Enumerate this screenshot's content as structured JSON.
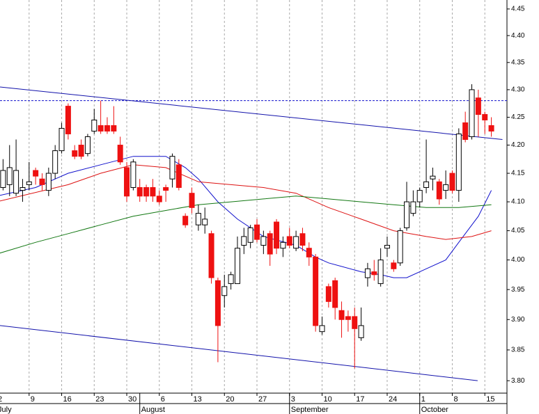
{
  "chart_data": {
    "type": "candlestick",
    "log_scale": true,
    "grid": "x",
    "ylim": [
      3.78,
      4.467
    ],
    "yticks": [
      {
        "value": 4.45,
        "label": "4.45"
      },
      {
        "value": 4.4,
        "label": "4.40"
      },
      {
        "value": 4.35,
        "label": "4.35"
      },
      {
        "value": 4.3,
        "label": "4.30"
      },
      {
        "value": 4.25,
        "label": "4.25"
      },
      {
        "value": 4.2,
        "label": "4.20"
      },
      {
        "value": 4.15,
        "label": "4.15"
      },
      {
        "value": 4.1,
        "label": "4.10"
      },
      {
        "value": 4.05,
        "label": "4.05"
      },
      {
        "value": 4.0,
        "label": "4.00"
      },
      {
        "value": 3.95,
        "label": "3.95"
      },
      {
        "value": 3.9,
        "label": "3.90"
      },
      {
        "value": 3.85,
        "label": "3.85"
      },
      {
        "value": 3.8,
        "label": "3.80"
      }
    ],
    "xlim": [
      0.53,
      78.4
    ],
    "xticks": [
      {
        "value": 0,
        "label": "2"
      },
      {
        "value": 5,
        "label": "9"
      },
      {
        "value": 10,
        "label": "16"
      },
      {
        "value": 15,
        "label": "23"
      },
      {
        "value": 20,
        "label": "30"
      },
      {
        "value": 25,
        "label": "6"
      },
      {
        "value": 30,
        "label": "13"
      },
      {
        "value": 35,
        "label": "20"
      },
      {
        "value": 40,
        "label": "27"
      },
      {
        "value": 45,
        "label": "3"
      },
      {
        "value": 50,
        "label": "10"
      },
      {
        "value": 55,
        "label": "17"
      },
      {
        "value": 60,
        "label": "24"
      },
      {
        "value": 65,
        "label": "1"
      },
      {
        "value": 70,
        "label": "8"
      },
      {
        "value": 75,
        "label": "15"
      }
    ],
    "months": [
      {
        "value": 0,
        "label": "July"
      },
      {
        "value": 22,
        "label": "August"
      },
      {
        "value": 45,
        "label": "September"
      },
      {
        "value": 65,
        "label": "October"
      }
    ],
    "up_color": "#ffffff",
    "down_color": "#ee1111",
    "x": [
      1,
      2,
      3,
      4,
      5,
      6,
      7,
      8,
      9,
      10,
      11,
      12,
      13,
      14,
      15,
      16,
      17,
      18,
      19,
      20,
      21,
      22,
      23,
      24,
      25,
      26,
      27,
      28,
      29,
      30,
      31,
      32,
      33,
      34,
      35,
      36,
      37,
      38,
      39,
      40,
      41,
      42,
      43,
      44,
      45,
      46,
      47,
      48,
      49,
      50,
      51,
      52,
      53,
      54,
      55,
      56,
      57,
      58,
      59,
      60,
      61,
      62,
      63,
      64,
      65,
      66,
      67,
      68,
      69,
      70,
      71,
      72,
      73,
      74,
      75,
      76
    ],
    "open": [
      4.125,
      4.13,
      4.115,
      4.12,
      4.13,
      4.155,
      4.14,
      4.12,
      4.15,
      4.19,
      4.27,
      4.19,
      4.2,
      4.185,
      4.225,
      4.235,
      4.235,
      4.235,
      4.2,
      4.16,
      4.125,
      4.125,
      4.125,
      4.125,
      4.11,
      4.125,
      4.14,
      4.165,
      4.075,
      4.115,
      4.06,
      4.06,
      4.045,
      3.965,
      3.94,
      3.96,
      3.96,
      4.025,
      4.03,
      4.06,
      4.025,
      4.045,
      4.065,
      4.02,
      4.04,
      4.02,
      4.045,
      4.02,
      4.005,
      3.88,
      3.955,
      3.965,
      3.915,
      3.905,
      3.905,
      3.87,
      3.97,
      3.98,
      3.96,
      4.02,
      3.995,
      3.995,
      4.055,
      4.08,
      4.1,
      4.125,
      4.14,
      4.135,
      4.12,
      4.15,
      4.12,
      4.24,
      4.215,
      4.285,
      4.255,
      4.235
    ],
    "high": [
      4.175,
      4.2,
      4.21,
      4.14,
      4.17,
      4.16,
      4.15,
      4.16,
      4.2,
      4.24,
      4.275,
      4.2,
      4.21,
      4.22,
      4.265,
      4.28,
      4.25,
      4.27,
      4.215,
      4.17,
      4.175,
      4.14,
      4.13,
      4.14,
      4.12,
      4.13,
      4.185,
      4.175,
      4.08,
      4.125,
      4.095,
      4.09,
      4.05,
      3.97,
      3.975,
      3.98,
      4.04,
      4.055,
      4.06,
      4.07,
      4.05,
      4.05,
      4.07,
      4.04,
      4.055,
      4.05,
      4.055,
      4.03,
      4.01,
      3.905,
      3.96,
      3.97,
      3.93,
      3.915,
      3.92,
      3.92,
      3.995,
      4.0,
      4.02,
      4.04,
      4.0,
      4.055,
      4.135,
      4.12,
      4.125,
      4.21,
      4.16,
      4.14,
      4.155,
      4.155,
      4.23,
      4.26,
      4.31,
      4.3,
      4.26,
      4.25
    ],
    "low": [
      4.12,
      4.11,
      4.11,
      4.1,
      4.12,
      4.13,
      4.12,
      4.11,
      4.14,
      4.185,
      4.21,
      4.175,
      4.175,
      4.18,
      4.22,
      4.22,
      4.22,
      4.22,
      4.165,
      4.1,
      4.12,
      4.1,
      4.1,
      4.1,
      4.095,
      4.1,
      4.125,
      4.12,
      4.055,
      4.08,
      4.05,
      4.045,
      3.96,
      3.83,
      3.92,
      3.95,
      3.96,
      4.01,
      4.02,
      4.03,
      4.01,
      3.99,
      4.01,
      4.005,
      4.02,
      4.015,
      4.015,
      3.99,
      3.88,
      3.875,
      3.92,
      3.9,
      3.87,
      3.88,
      3.82,
      3.865,
      3.955,
      3.965,
      3.955,
      4.005,
      3.98,
      3.99,
      4.05,
      4.075,
      4.09,
      4.115,
      4.12,
      4.095,
      4.105,
      4.115,
      4.1,
      4.205,
      4.21,
      4.215,
      4.22,
      4.215
    ],
    "close": [
      4.155,
      4.16,
      4.155,
      4.125,
      4.135,
      4.145,
      4.13,
      4.15,
      4.19,
      4.23,
      4.22,
      4.18,
      4.18,
      4.215,
      4.245,
      4.225,
      4.225,
      4.225,
      4.17,
      4.11,
      4.17,
      4.11,
      4.11,
      4.11,
      4.1,
      4.12,
      4.18,
      4.125,
      4.06,
      4.09,
      4.08,
      4.07,
      3.97,
      3.89,
      3.955,
      3.975,
      4.02,
      4.04,
      4.055,
      4.035,
      4.04,
      4.01,
      4.02,
      4.03,
      4.025,
      4.04,
      4.025,
      4.005,
      3.89,
      3.89,
      3.93,
      3.92,
      3.9,
      3.9,
      3.885,
      3.89,
      3.985,
      3.975,
      4.0,
      4.025,
      3.985,
      4.05,
      4.1,
      4.1,
      4.12,
      4.135,
      4.145,
      4.105,
      4.13,
      4.12,
      4.22,
      4.21,
      4.3,
      4.255,
      4.245,
      4.225
    ],
    "lines": [
      {
        "color": "#1010cc",
        "x": [
          0,
          6,
          11,
          16,
          21,
          26,
          29,
          31,
          34,
          37,
          41,
          46,
          49,
          51,
          56,
          59,
          61,
          63,
          66,
          69,
          71,
          74,
          76
        ],
        "values": [
          4.11,
          4.125,
          4.15,
          4.165,
          4.18,
          4.18,
          4.16,
          4.14,
          4.1,
          4.07,
          4.04,
          4.025,
          4.005,
          3.995,
          3.98,
          3.975,
          3.97,
          3.97,
          3.985,
          4.0,
          4.03,
          4.075,
          4.12
        ]
      },
      {
        "color": "#dd1111",
        "x": [
          0,
          11,
          16,
          21,
          26,
          31,
          36,
          41,
          46,
          51,
          56,
          61,
          66,
          69,
          73,
          76
        ],
        "values": [
          4.1,
          4.13,
          4.15,
          4.165,
          4.16,
          4.135,
          4.13,
          4.125,
          4.115,
          4.09,
          4.07,
          4.05,
          4.04,
          4.035,
          4.04,
          4.05
        ]
      },
      {
        "color": "#117711",
        "x": [
          0,
          6,
          11,
          16,
          21,
          26,
          31,
          36,
          41,
          46,
          51,
          56,
          61,
          66,
          71,
          76
        ],
        "values": [
          4.01,
          4.03,
          4.045,
          4.06,
          4.075,
          4.085,
          4.095,
          4.1,
          4.105,
          4.11,
          4.105,
          4.1,
          4.095,
          4.09,
          4.09,
          4.095
        ]
      },
      {
        "color": "#1010aa",
        "x": [
          0.53,
          77.7
        ],
        "values": [
          4.305,
          4.21
        ]
      },
      {
        "color": "#1010aa",
        "x": [
          0.53,
          73.9
        ],
        "values": [
          3.89,
          3.8
        ]
      }
    ],
    "hline": {
      "value": 4.28,
      "color": "#1010cc"
    }
  }
}
